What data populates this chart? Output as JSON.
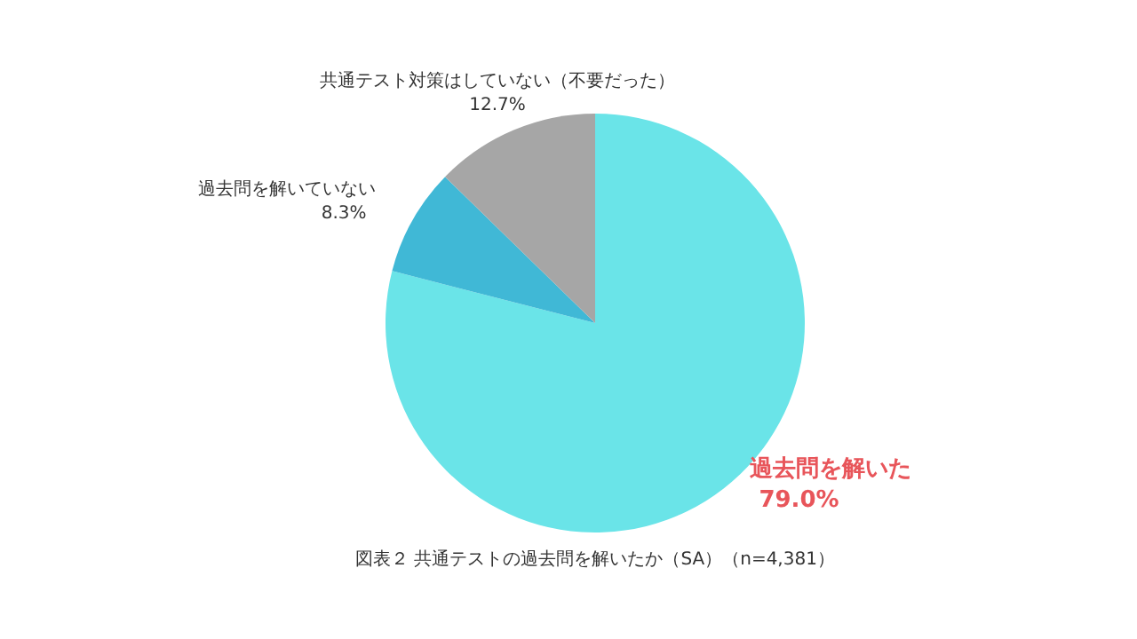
{
  "chart_data": {
    "type": "pie",
    "categories": [
      "過去問を解いた",
      "過去問を解いていない",
      "共通テスト対策はしていない（不要だった）"
    ],
    "values": [
      79.0,
      8.3,
      12.7
    ],
    "colors": [
      "#6ae4e8",
      "#40b8d6",
      "#a6a6a6"
    ],
    "value_labels": [
      "79.0%",
      "8.3%",
      "12.7%"
    ],
    "annotations": [
      "図表２ 共通テストの過去問を解いたか（SA）（n=4,381）"
    ]
  }
}
